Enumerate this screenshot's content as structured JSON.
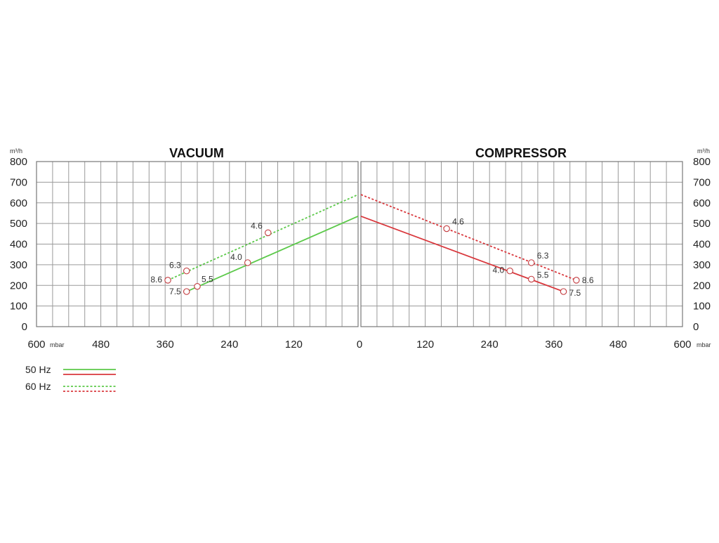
{
  "chart_data": [
    {
      "type": "line",
      "title": "VACUUM",
      "y_unit": "m³/h",
      "x_unit": "mbar",
      "x_ticks": [
        600,
        480,
        360,
        240,
        120,
        0
      ],
      "y_ticks": [
        0,
        100,
        200,
        300,
        400,
        500,
        600,
        700,
        800
      ],
      "xlim": [
        600,
        0
      ],
      "ylim": [
        0,
        800
      ],
      "grid": true,
      "series": [
        {
          "name": "50 Hz",
          "color": "#5cc94a",
          "dash": false,
          "line": [
            [
              320,
              170
            ],
            [
              0,
              535
            ]
          ],
          "points": [
            {
              "x": 300,
              "y": 195,
              "label": "5.5"
            },
            {
              "x": 206,
              "y": 310,
              "label": "4.0"
            },
            {
              "x": 320,
              "y": 170,
              "label": "7.5"
            }
          ]
        },
        {
          "name": "60 Hz",
          "color": "#5cc94a",
          "dash": true,
          "line": [
            [
              355,
              225
            ],
            [
              0,
              640
            ]
          ],
          "points": [
            {
              "x": 355,
              "y": 225,
              "label": "8.6"
            },
            {
              "x": 320,
              "y": 270,
              "label": "6.3"
            },
            {
              "x": 168,
              "y": 455,
              "label": "4.6"
            }
          ]
        }
      ]
    },
    {
      "type": "line",
      "title": "COMPRESSOR",
      "y_unit": "m³/h",
      "x_unit": "mbar",
      "x_ticks": [
        0,
        120,
        240,
        360,
        480,
        600
      ],
      "y_ticks": [
        0,
        100,
        200,
        300,
        400,
        500,
        600,
        700,
        800
      ],
      "xlim": [
        0,
        600
      ],
      "ylim": [
        0,
        800
      ],
      "grid": true,
      "series": [
        {
          "name": "50 Hz",
          "color": "#d9383d",
          "dash": false,
          "line": [
            [
              0,
              535
            ],
            [
              378,
              170
            ]
          ],
          "points": [
            {
              "x": 278,
              "y": 270,
              "label": "4.0"
            },
            {
              "x": 318,
              "y": 230,
              "label": "5.5"
            },
            {
              "x": 378,
              "y": 170,
              "label": "7.5"
            }
          ]
        },
        {
          "name": "60 Hz",
          "color": "#d9383d",
          "dash": true,
          "line": [
            [
              0,
              640
            ],
            [
              402,
              225
            ]
          ],
          "points": [
            {
              "x": 160,
              "y": 475,
              "label": "4.6"
            },
            {
              "x": 318,
              "y": 310,
              "label": "6.3"
            },
            {
              "x": 402,
              "y": 225,
              "label": "8.6"
            }
          ]
        }
      ]
    }
  ],
  "legend": [
    {
      "label": "50 Hz",
      "dash": false,
      "colors": [
        "#5cc94a",
        "#d9383d"
      ]
    },
    {
      "label": "60 Hz",
      "dash": true,
      "colors": [
        "#5cc94a",
        "#d9383d"
      ]
    }
  ]
}
